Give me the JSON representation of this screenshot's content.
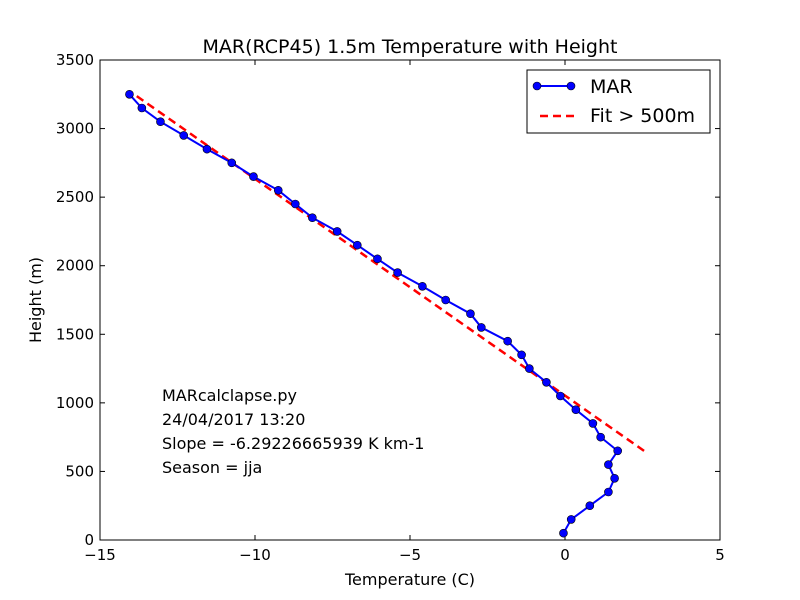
{
  "chart_data": {
    "type": "line",
    "title": "MAR(RCP45) 1.5m Temperature with Height",
    "xlabel": "Temperature (C)",
    "ylabel": "Height (m)",
    "xlim": [
      -15,
      5
    ],
    "ylim": [
      0,
      3500
    ],
    "xticks": [
      -15,
      -10,
      -5,
      0,
      5
    ],
    "xtick_labels": [
      "−15",
      "−10",
      "−5",
      "0",
      "5"
    ],
    "yticks": [
      0,
      500,
      1000,
      1500,
      2000,
      2500,
      3000,
      3500
    ],
    "ytick_labels": [
      "0",
      "500",
      "1000",
      "1500",
      "2000",
      "2500",
      "3000",
      "3500"
    ],
    "grid": false,
    "legend_position": "top-right",
    "series": [
      {
        "name": "MAR",
        "style": "solid line with circle markers",
        "color": "#0000ff",
        "x": [
          -0.05,
          0.2,
          0.8,
          1.4,
          1.6,
          1.4,
          1.7,
          1.15,
          0.9,
          0.35,
          -0.15,
          -0.6,
          -1.15,
          -1.4,
          -1.85,
          -2.7,
          -3.05,
          -3.85,
          -4.6,
          -5.4,
          -6.05,
          -6.7,
          -7.35,
          -8.15,
          -8.7,
          -9.25,
          -10.05,
          -10.75,
          -11.55,
          -12.3,
          -13.05,
          -13.65,
          -14.05
        ],
        "y": [
          50,
          150,
          250,
          350,
          450,
          550,
          650,
          750,
          850,
          950,
          1050,
          1150,
          1250,
          1350,
          1450,
          1550,
          1650,
          1750,
          1850,
          1950,
          2050,
          2150,
          2250,
          2350,
          2450,
          2550,
          2650,
          2750,
          2850,
          2950,
          3050,
          3150,
          3250
        ]
      },
      {
        "name": "Fit > 500m",
        "style": "dashed line",
        "color": "#ff0000",
        "x": [
          2.55,
          -13.9
        ],
        "y": [
          650,
          3250
        ]
      }
    ],
    "annotations": [
      "MARcalclapse.py",
      "24/04/2017 13:20",
      "Slope = -6.29226665939 K km-1",
      "Season  = jja"
    ]
  }
}
